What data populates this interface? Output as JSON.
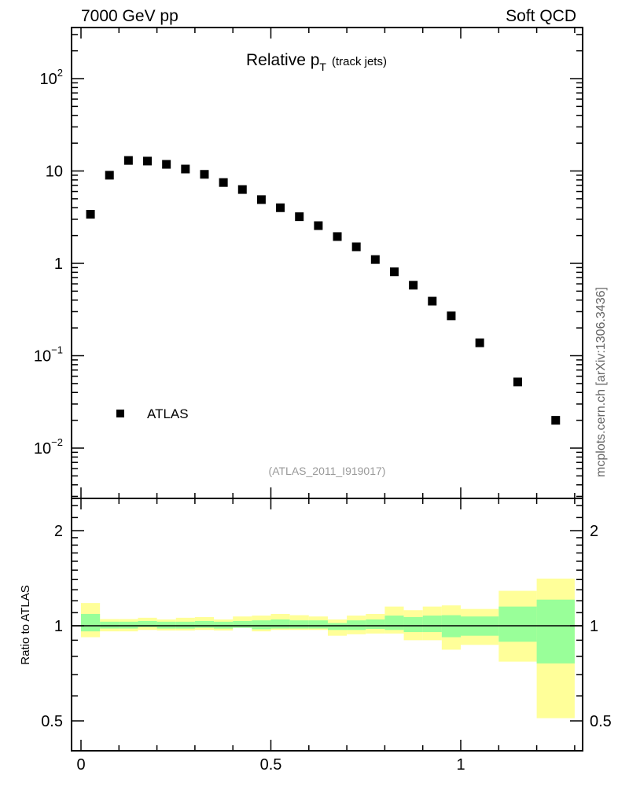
{
  "header": {
    "left": "7000 GeV pp",
    "right": "Soft QCD"
  },
  "side_label": "mcplots.cern.ch [arXiv:1306.3436]",
  "chart_data": [
    {
      "type": "scatter",
      "title_main": "Relative p",
      "title_sub": "T",
      "title_suffix": "(track jets)",
      "analysis_label": "(ATLAS_2011_I919017)",
      "yscale": "log",
      "ylim": [
        0.0029,
        340
      ],
      "xlim": [
        -0.025,
        1.32
      ],
      "ytick_labels": [
        {
          "value": 100,
          "base": "10",
          "exp": "2"
        },
        {
          "value": 10,
          "base": "10",
          "exp": ""
        },
        {
          "value": 1,
          "base": "1",
          "exp": ""
        },
        {
          "value": 0.1,
          "base": "10",
          "exp": "−1"
        },
        {
          "value": 0.01,
          "base": "10",
          "exp": "−2"
        }
      ],
      "legend": {
        "entries": [
          "ATLAS"
        ],
        "placement": "bottom-left"
      },
      "series": [
        {
          "name": "ATLAS",
          "marker": "square",
          "color": "#000000",
          "x": [
            0.025,
            0.075,
            0.125,
            0.175,
            0.225,
            0.275,
            0.325,
            0.375,
            0.425,
            0.475,
            0.525,
            0.575,
            0.625,
            0.675,
            0.725,
            0.775,
            0.825,
            0.875,
            0.925,
            0.975,
            1.05,
            1.15,
            1.25
          ],
          "y": [
            3.4,
            9.0,
            13.0,
            12.8,
            11.8,
            10.5,
            9.2,
            7.5,
            6.3,
            4.9,
            4.0,
            3.2,
            2.56,
            1.95,
            1.51,
            1.1,
            0.81,
            0.58,
            0.39,
            0.27,
            0.138,
            0.052,
            0.02
          ]
        }
      ]
    },
    {
      "type": "area",
      "ylabel": "Ratio to ATLAS",
      "yscale": "log",
      "ylim": [
        0.4,
        2.5
      ],
      "xlim": [
        -0.025,
        1.32
      ],
      "ytick_labels": [
        "2",
        "1",
        "0.5"
      ],
      "ytick_values": [
        2,
        1,
        0.5
      ],
      "xtick_labels": [
        "0",
        "0.5",
        "1"
      ],
      "xtick_values": [
        0,
        0.5,
        1
      ],
      "bin_edges": [
        0,
        0.05,
        0.1,
        0.15,
        0.2,
        0.25,
        0.3,
        0.35,
        0.4,
        0.45,
        0.5,
        0.55,
        0.6,
        0.65,
        0.7,
        0.75,
        0.8,
        0.85,
        0.9,
        0.95,
        1.0,
        1.1,
        1.2,
        1.3
      ],
      "band_outer": {
        "color": "#ffff99",
        "upper": [
          1.18,
          1.05,
          1.05,
          1.06,
          1.047,
          1.06,
          1.065,
          1.047,
          1.07,
          1.077,
          1.09,
          1.08,
          1.07,
          1.047,
          1.077,
          1.09,
          1.15,
          1.12,
          1.15,
          1.16,
          1.13,
          1.29,
          1.41
        ],
        "lower": [
          0.92,
          0.96,
          0.96,
          0.97,
          0.966,
          0.966,
          0.97,
          0.966,
          0.99,
          0.96,
          0.97,
          0.97,
          0.97,
          0.93,
          0.94,
          0.945,
          0.945,
          0.9,
          0.9,
          0.84,
          0.87,
          0.77,
          0.51
        ]
      },
      "band_inner": {
        "color": "#99ff99",
        "upper": [
          1.09,
          1.03,
          1.03,
          1.035,
          1.03,
          1.03,
          1.035,
          1.03,
          1.035,
          1.04,
          1.047,
          1.04,
          1.04,
          1.02,
          1.04,
          1.047,
          1.077,
          1.065,
          1.077,
          1.08,
          1.07,
          1.15,
          1.21
        ],
        "lower": [
          0.96,
          0.98,
          0.98,
          0.99,
          0.98,
          0.98,
          0.985,
          0.98,
          0.985,
          0.975,
          0.98,
          0.98,
          0.98,
          0.97,
          0.97,
          0.977,
          0.97,
          0.955,
          0.955,
          0.92,
          0.93,
          0.89,
          0.76
        ]
      },
      "reference_line": 1
    }
  ]
}
